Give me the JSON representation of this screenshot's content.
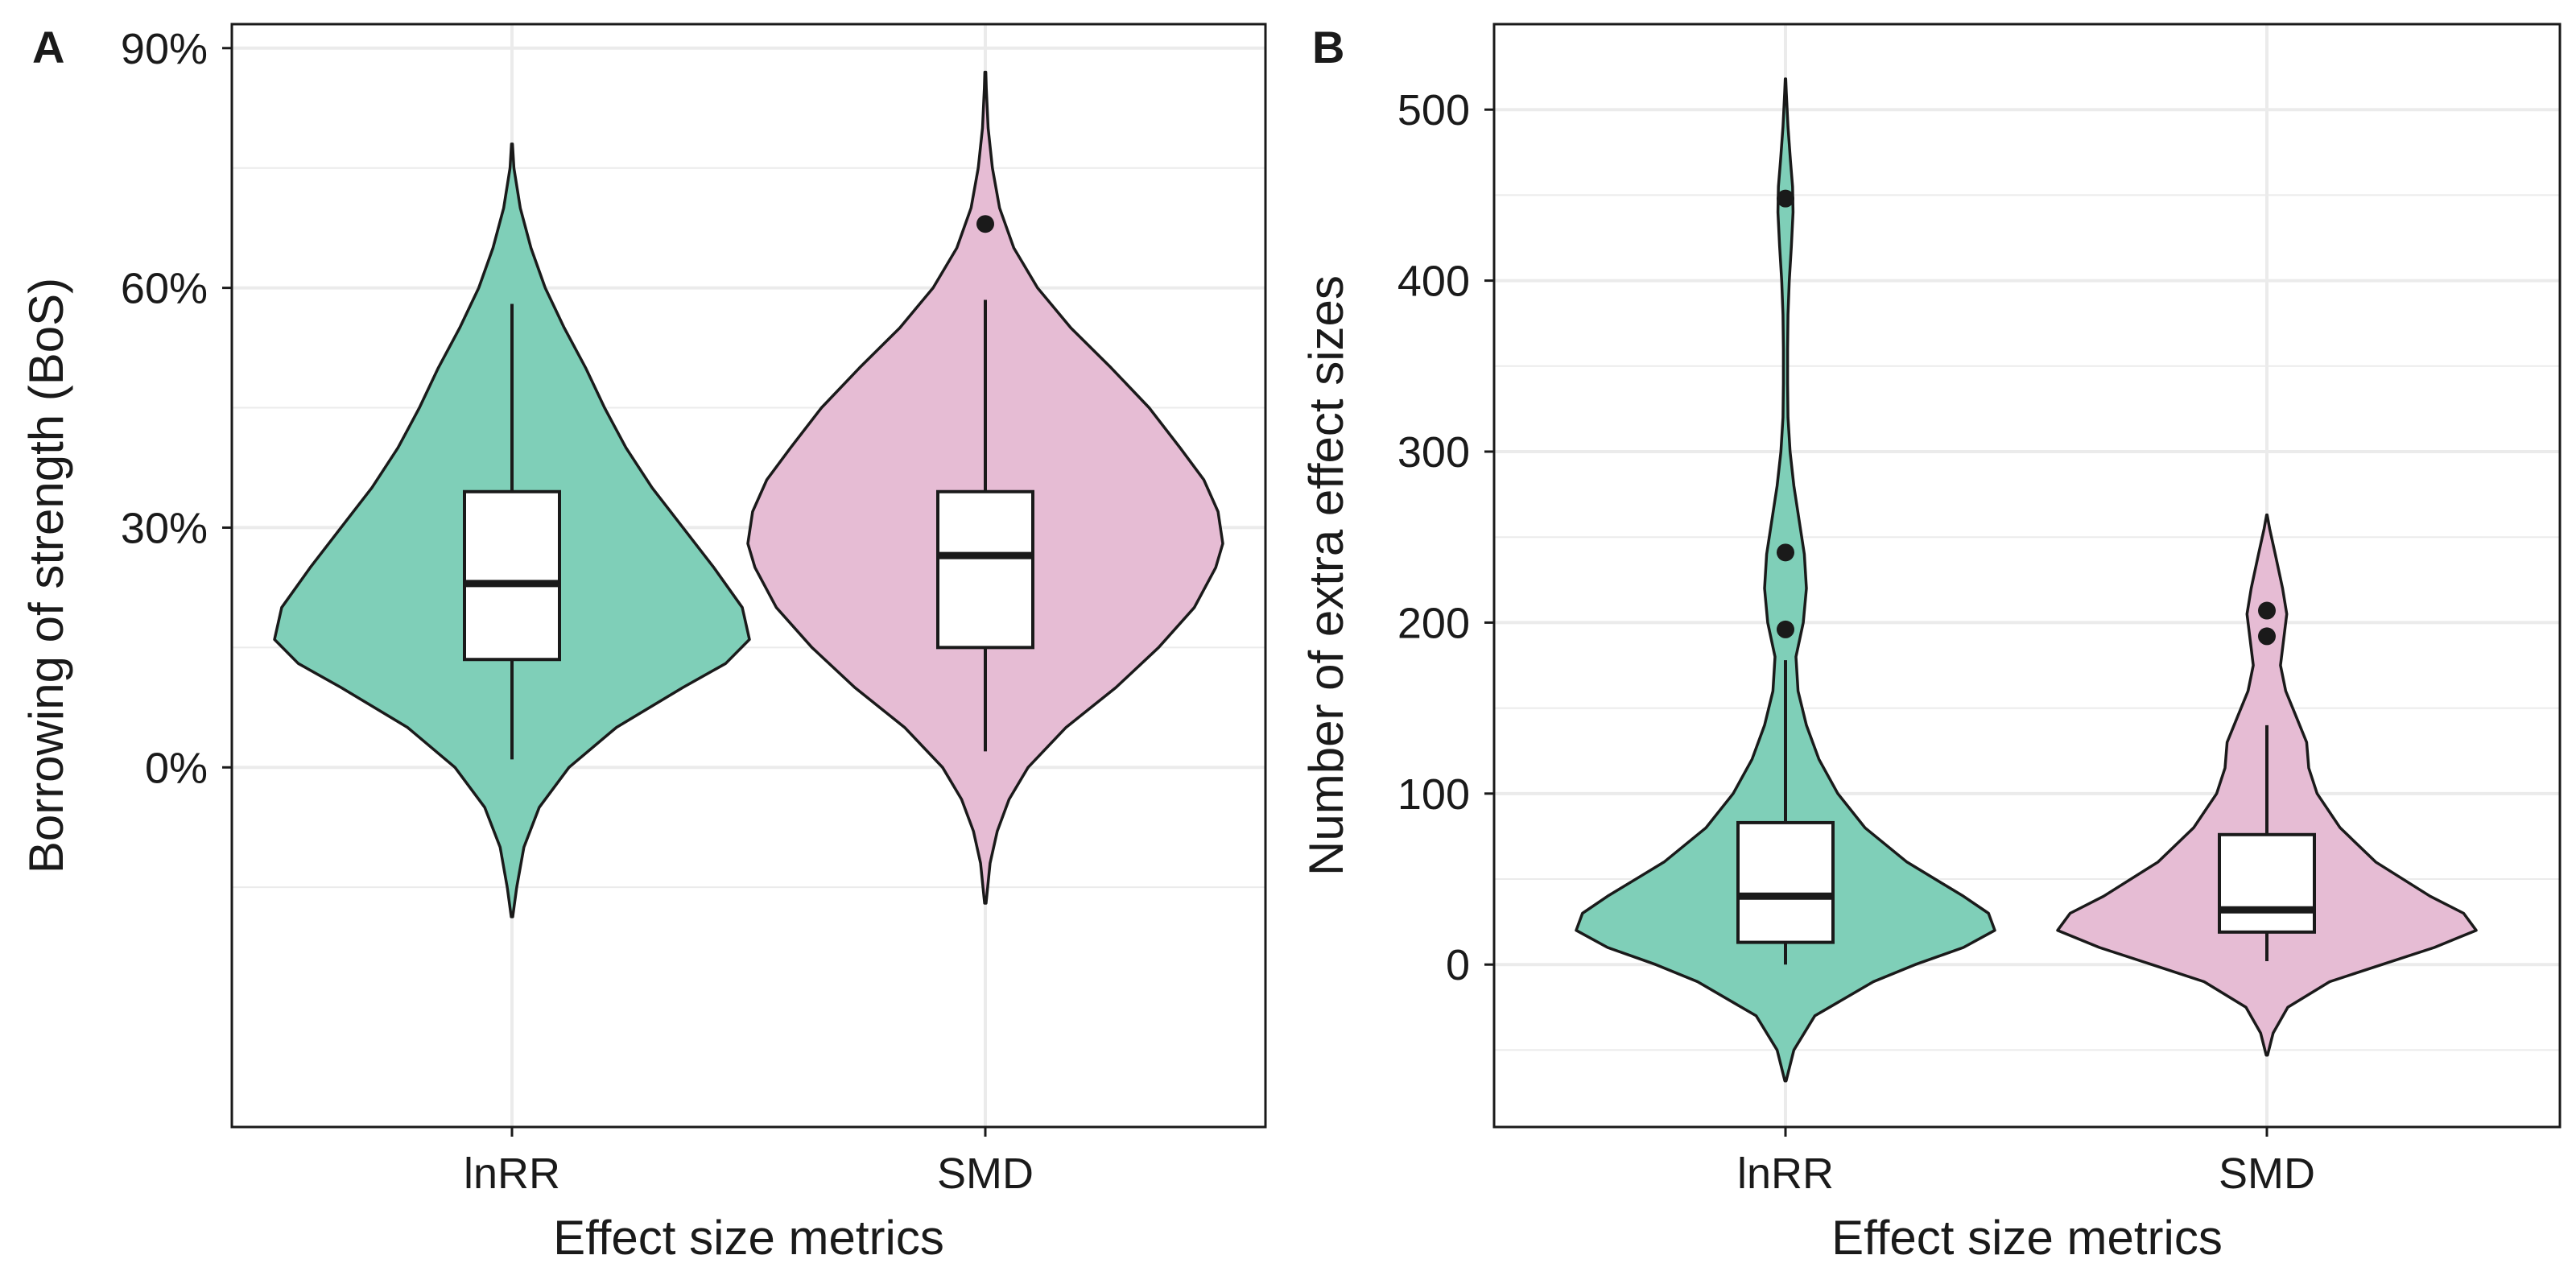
{
  "figure": {
    "colors": {
      "lnRR": "#7fcfb8",
      "SMD": "#e6bcd4",
      "outline": "#1a1a1a",
      "grid": "#ebebeb",
      "box_fill": "#ffffff"
    }
  },
  "chart_data": [
    {
      "panel": "A",
      "type": "violin",
      "xlabel": "Effect size metrics",
      "ylabel": "Borrowing of strength (BoS)",
      "categories": [
        "lnRR",
        "SMD"
      ],
      "ylim": [
        -0.45,
        0.93
      ],
      "yticks": [
        0,
        0.3,
        0.6,
        0.9
      ],
      "ytick_labels": [
        "0%",
        "30%",
        "60%",
        "90%"
      ],
      "grid": true,
      "legend": "none",
      "series": [
        {
          "category": "lnRR",
          "box": {
            "whisker_low": 0.01,
            "q1": 0.135,
            "median": 0.23,
            "q3": 0.345,
            "whisker_high": 0.58
          },
          "outliers": [],
          "density_profile": [
            [
              -0.187,
              0.003
            ],
            [
              -0.15,
              0.02
            ],
            [
              -0.1,
              0.05
            ],
            [
              -0.05,
              0.115
            ],
            [
              0.0,
              0.24
            ],
            [
              0.05,
              0.44
            ],
            [
              0.1,
              0.72
            ],
            [
              0.13,
              0.9
            ],
            [
              0.16,
              1.0
            ],
            [
              0.2,
              0.97
            ],
            [
              0.25,
              0.85
            ],
            [
              0.3,
              0.72
            ],
            [
              0.35,
              0.59
            ],
            [
              0.4,
              0.48
            ],
            [
              0.45,
              0.39
            ],
            [
              0.5,
              0.31
            ],
            [
              0.55,
              0.22
            ],
            [
              0.6,
              0.14
            ],
            [
              0.65,
              0.08
            ],
            [
              0.7,
              0.035
            ],
            [
              0.75,
              0.008
            ],
            [
              0.78,
              0.002
            ]
          ]
        },
        {
          "category": "SMD",
          "box": {
            "whisker_low": 0.02,
            "q1": 0.15,
            "median": 0.265,
            "q3": 0.345,
            "whisker_high": 0.585
          },
          "outliers": [
            0.68
          ],
          "density_profile": [
            [
              -0.17,
              0.003
            ],
            [
              -0.12,
              0.02
            ],
            [
              -0.08,
              0.05
            ],
            [
              -0.04,
              0.1
            ],
            [
              0.0,
              0.18
            ],
            [
              0.05,
              0.34
            ],
            [
              0.1,
              0.55
            ],
            [
              0.15,
              0.73
            ],
            [
              0.2,
              0.88
            ],
            [
              0.25,
              0.97
            ],
            [
              0.28,
              1.0
            ],
            [
              0.32,
              0.98
            ],
            [
              0.36,
              0.92
            ],
            [
              0.4,
              0.82
            ],
            [
              0.45,
              0.69
            ],
            [
              0.5,
              0.53
            ],
            [
              0.55,
              0.36
            ],
            [
              0.6,
              0.22
            ],
            [
              0.65,
              0.12
            ],
            [
              0.7,
              0.06
            ],
            [
              0.75,
              0.03
            ],
            [
              0.8,
              0.012
            ],
            [
              0.85,
              0.004
            ],
            [
              0.87,
              0.002
            ]
          ]
        }
      ]
    },
    {
      "panel": "B",
      "type": "violin",
      "xlabel": "Effect size metrics",
      "ylabel": "Number of extra effect sizes",
      "categories": [
        "lnRR",
        "SMD"
      ],
      "ylim": [
        -95,
        550
      ],
      "yticks": [
        0,
        100,
        200,
        300,
        400,
        500
      ],
      "ytick_labels": [
        "0",
        "100",
        "200",
        "300",
        "400",
        "500"
      ],
      "grid": true,
      "legend": "none",
      "series": [
        {
          "category": "lnRR",
          "box": {
            "whisker_low": 0,
            "q1": 13,
            "median": 40,
            "q3": 83,
            "whisker_high": 178
          },
          "outliers": [
            448,
            241,
            196
          ],
          "density_profile": [
            [
              -68,
              0.003
            ],
            [
              -50,
              0.04
            ],
            [
              -30,
              0.14
            ],
            [
              -10,
              0.42
            ],
            [
              0,
              0.62
            ],
            [
              10,
              0.85
            ],
            [
              20,
              1.0
            ],
            [
              30,
              0.97
            ],
            [
              40,
              0.85
            ],
            [
              60,
              0.58
            ],
            [
              80,
              0.38
            ],
            [
              100,
              0.25
            ],
            [
              120,
              0.16
            ],
            [
              140,
              0.1
            ],
            [
              160,
              0.06
            ],
            [
              180,
              0.05
            ],
            [
              200,
              0.085
            ],
            [
              220,
              0.1
            ],
            [
              240,
              0.09
            ],
            [
              260,
              0.065
            ],
            [
              280,
              0.04
            ],
            [
              300,
              0.022
            ],
            [
              320,
              0.012
            ],
            [
              340,
              0.01
            ],
            [
              360,
              0.01
            ],
            [
              380,
              0.012
            ],
            [
              400,
              0.018
            ],
            [
              420,
              0.028
            ],
            [
              440,
              0.036
            ],
            [
              455,
              0.034
            ],
            [
              470,
              0.024
            ],
            [
              490,
              0.012
            ],
            [
              510,
              0.004
            ],
            [
              518,
              0.001
            ]
          ]
        },
        {
          "category": "SMD",
          "box": {
            "whisker_low": 2,
            "q1": 19,
            "median": 32,
            "q3": 76,
            "whisker_high": 140
          },
          "outliers": [
            207,
            192
          ],
          "density_profile": [
            [
              -53,
              0.003
            ],
            [
              -40,
              0.03
            ],
            [
              -25,
              0.1
            ],
            [
              -10,
              0.3
            ],
            [
              0,
              0.55
            ],
            [
              10,
              0.8
            ],
            [
              20,
              1.0
            ],
            [
              30,
              0.94
            ],
            [
              40,
              0.78
            ],
            [
              60,
              0.52
            ],
            [
              80,
              0.35
            ],
            [
              100,
              0.24
            ],
            [
              115,
              0.2
            ],
            [
              130,
              0.19
            ],
            [
              145,
              0.14
            ],
            [
              160,
              0.09
            ],
            [
              175,
              0.065
            ],
            [
              190,
              0.08
            ],
            [
              205,
              0.095
            ],
            [
              220,
              0.075
            ],
            [
              240,
              0.04
            ],
            [
              255,
              0.013
            ],
            [
              263,
              0.001
            ]
          ]
        }
      ]
    }
  ]
}
